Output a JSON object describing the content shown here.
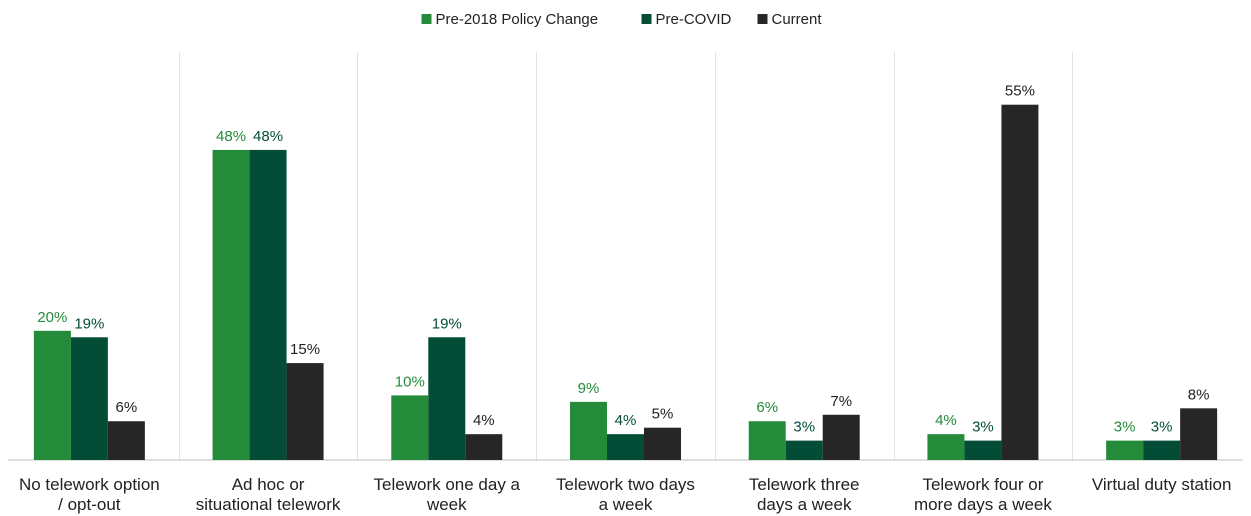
{
  "chart_data": {
    "type": "bar",
    "categories": [
      [
        "No telework option",
        "/ opt-out"
      ],
      [
        "Ad hoc or",
        "situational telework"
      ],
      [
        "Telework one day a",
        "week"
      ],
      [
        "Telework two days",
        "a week"
      ],
      [
        "Telework three",
        "days a week"
      ],
      [
        "Telework four or",
        "more days a week"
      ],
      [
        "Virtual duty station"
      ]
    ],
    "series": [
      {
        "name": "Pre-2018 Policy Change",
        "color": "#238b3a",
        "label_color": "#238b3a",
        "values": [
          20,
          48,
          10,
          9,
          6,
          4,
          3
        ]
      },
      {
        "name": "Pre-COVID",
        "color": "#034d37",
        "label_color": "#034d37",
        "values": [
          19,
          48,
          19,
          4,
          3,
          3,
          3
        ]
      },
      {
        "name": "Current",
        "color": "#262626",
        "label_color": "#222222",
        "values": [
          6,
          15,
          4,
          5,
          7,
          55,
          8
        ]
      }
    ],
    "value_suffix": "%",
    "ylim": [
      0,
      60
    ],
    "legend_position": "top-center",
    "grid": false,
    "title": "",
    "xlabel": "",
    "ylabel": ""
  }
}
